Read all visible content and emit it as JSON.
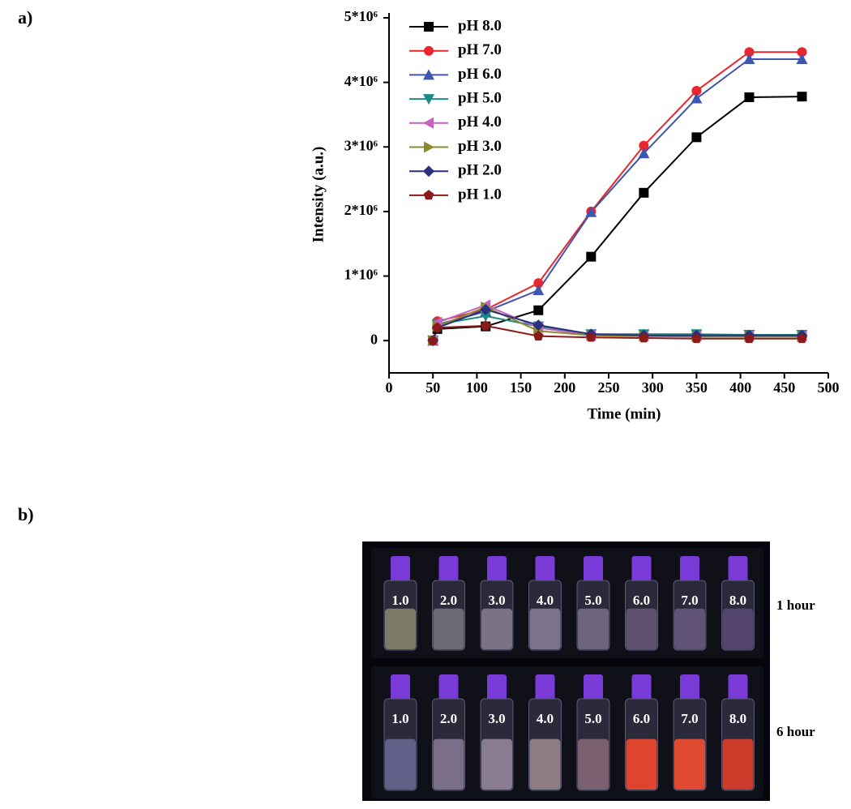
{
  "panel_labels": [
    "a)",
    "b)"
  ],
  "chart_data": {
    "type": "line",
    "x_label": "Time (min)",
    "y_label": "Intensity (a.u.)",
    "x": [
      50,
      55,
      110,
      170,
      230,
      290,
      350,
      410,
      470
    ],
    "series": [
      {
        "name": "pH 8.0",
        "color": "#000000",
        "marker": "square",
        "values": [
          0,
          180000,
          220000,
          470000,
          1300000,
          2290000,
          3150000,
          3770000,
          3780000
        ]
      },
      {
        "name": "pH 7.0",
        "color": "#e8262b",
        "marker": "circle",
        "values": [
          0,
          300000,
          480000,
          890000,
          2000000,
          3020000,
          3870000,
          4470000,
          4470000
        ]
      },
      {
        "name": "pH 6.0",
        "color": "#3f56b0",
        "marker": "triangle-up",
        "values": [
          0,
          250000,
          450000,
          780000,
          1990000,
          2900000,
          3750000,
          4360000,
          4360000
        ]
      },
      {
        "name": "pH 5.0",
        "color": "#1a8a82",
        "marker": "triangle-down",
        "values": [
          0,
          250000,
          380000,
          220000,
          100000,
          100000,
          100000,
          90000,
          90000
        ]
      },
      {
        "name": "pH 4.0",
        "color": "#c462c0",
        "marker": "triangle-left",
        "values": [
          0,
          280000,
          550000,
          200000,
          80000,
          70000,
          70000,
          70000,
          70000
        ]
      },
      {
        "name": "pH 3.0",
        "color": "#8c8a2a",
        "marker": "triangle-right",
        "values": [
          0,
          220000,
          520000,
          150000,
          80000,
          70000,
          60000,
          60000,
          60000
        ]
      },
      {
        "name": "pH 2.0",
        "color": "#2a2f82",
        "marker": "diamond",
        "values": [
          0,
          200000,
          480000,
          240000,
          100000,
          80000,
          80000,
          80000,
          80000
        ]
      },
      {
        "name": "pH 1.0",
        "color": "#8b1a1a",
        "marker": "pentagon",
        "values": [
          0,
          200000,
          230000,
          70000,
          50000,
          40000,
          30000,
          30000,
          30000
        ]
      }
    ],
    "xlim": [
      0,
      500
    ],
    "xticks": [
      0,
      50,
      100,
      150,
      200,
      250,
      300,
      350,
      400,
      450,
      500
    ],
    "ylim": [
      -500000,
      5000000
    ],
    "yticks": [
      0,
      {
        "value": 1000000,
        "label": "1*10⁶"
      },
      {
        "value": 2000000,
        "label": "2*10⁶"
      },
      {
        "value": 3000000,
        "label": "3*10⁶"
      },
      {
        "value": 4000000,
        "label": "4*10⁶"
      },
      {
        "value": 5000000,
        "label": "5*10⁶"
      }
    ],
    "legend": "upper left"
  },
  "photo": {
    "rows": [
      {
        "label": "1 hour",
        "vials": [
          "1.0",
          "2.0",
          "3.0",
          "4.0",
          "5.0",
          "6.0",
          "7.0",
          "8.0"
        ],
        "liquid_colors": [
          "#8a8870",
          "#7a7680",
          "#8a8090",
          "#8a8098",
          "#7a7088",
          "#6a5878",
          "#6a5a80",
          "#5a4a78"
        ]
      },
      {
        "label": "6 hour",
        "vials": [
          "1.0",
          "2.0",
          "3.0",
          "4.0",
          "5.0",
          "6.0",
          "7.0",
          "8.0"
        ],
        "liquid_colors": [
          "#6a6a98",
          "#8a7a98",
          "#9a8aa0",
          "#a08a90",
          "#8a6a7a",
          "#ff4a2a",
          "#ff5030",
          "#e84028"
        ]
      }
    ]
  }
}
